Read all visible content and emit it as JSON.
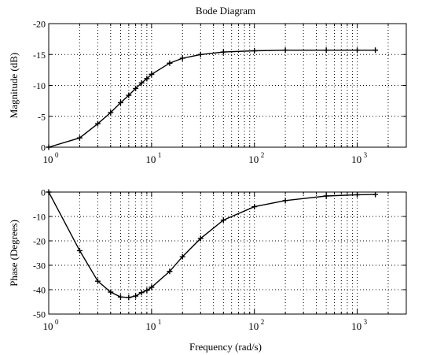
{
  "chart_data": [
    {
      "type": "line",
      "title": "Bode Diagram",
      "xlabel": "",
      "ylabel": "Magnitude (dB)",
      "x_scale": "log",
      "xlim": [
        1,
        3000
      ],
      "ylim": [
        -20,
        0
      ],
      "grid": true,
      "marker": "+",
      "x_ticks": [
        1,
        10,
        100,
        1000
      ],
      "x_tick_base": "10",
      "x_tick_exponents": [
        "0",
        "1",
        "2",
        "3"
      ],
      "y_ticks": [
        0,
        -5,
        -10,
        -15,
        -20
      ],
      "y_tick_labels": [
        "0",
        "-5",
        "-10",
        "-15",
        "-20"
      ],
      "x": [
        1,
        2,
        3,
        4,
        5,
        6,
        7,
        8,
        9,
        10,
        15,
        20,
        30,
        50,
        100,
        200,
        500,
        1000,
        1500
      ],
      "values": [
        0,
        -1.5,
        -3.8,
        -5.6,
        -7.2,
        -8.4,
        -9.5,
        -10.4,
        -11.1,
        -11.8,
        -13.6,
        -14.4,
        -15.0,
        -15.4,
        -15.6,
        -15.7,
        -15.7,
        -15.7,
        -15.7
      ]
    },
    {
      "type": "line",
      "title": "",
      "xlabel": "Frequency (rad/s)",
      "ylabel": "Phase (Degrees)",
      "x_scale": "log",
      "xlim": [
        1,
        3000
      ],
      "ylim": [
        0,
        -50
      ],
      "grid": true,
      "marker": "+",
      "x_ticks": [
        1,
        10,
        100,
        1000
      ],
      "x_tick_base": "10",
      "x_tick_exponents": [
        "0",
        "1",
        "2",
        "3"
      ],
      "y_ticks": [
        -50,
        -40,
        -30,
        -20,
        -10,
        0
      ],
      "y_tick_labels": [
        "-50",
        "-40",
        "-30",
        "-20",
        "-10",
        "0"
      ],
      "x": [
        1,
        2,
        3,
        4,
        5,
        6,
        7,
        8,
        9,
        10,
        15,
        20,
        30,
        50,
        100,
        200,
        500,
        1000,
        1500
      ],
      "values": [
        0,
        -24,
        -36.5,
        -41,
        -43,
        -43.2,
        -42.6,
        -41.2,
        -40.3,
        -39,
        -32.5,
        -26.5,
        -19,
        -11.5,
        -6,
        -3.5,
        -1.6,
        -1.1,
        -1
      ]
    }
  ]
}
